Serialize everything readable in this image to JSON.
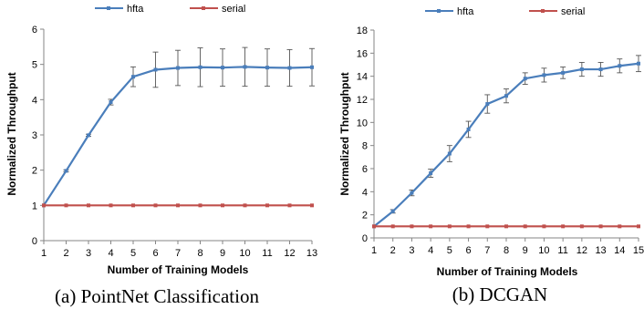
{
  "chart_data": [
    {
      "type": "line",
      "caption": "(a) PointNet Classification",
      "xlabel": "Number of Training Models",
      "ylabel": "Normalized Throughput",
      "xlim": [
        1,
        13
      ],
      "ylim": [
        0,
        6
      ],
      "x_ticks": [
        1,
        2,
        3,
        4,
        5,
        6,
        7,
        8,
        9,
        10,
        11,
        12,
        13
      ],
      "y_ticks": [
        0,
        1,
        2,
        3,
        4,
        5,
        6
      ],
      "legend_position": "top",
      "grid": false,
      "x": [
        1,
        2,
        3,
        4,
        5,
        6,
        7,
        8,
        9,
        10,
        11,
        12,
        13
      ],
      "series": [
        {
          "name": "hfta",
          "color": "#4a7ebb",
          "values": [
            1.0,
            1.98,
            2.99,
            3.93,
            4.65,
            4.85,
            4.9,
            4.92,
            4.91,
            4.93,
            4.91,
            4.9,
            4.92
          ],
          "error": [
            0.0,
            0.03,
            0.03,
            0.08,
            0.28,
            0.5,
            0.5,
            0.55,
            0.53,
            0.55,
            0.53,
            0.52,
            0.53
          ]
        },
        {
          "name": "serial",
          "color": "#c0504d",
          "values": [
            1,
            1,
            1,
            1,
            1,
            1,
            1,
            1,
            1,
            1,
            1,
            1,
            1
          ]
        }
      ]
    },
    {
      "type": "line",
      "caption": "(b) DCGAN",
      "xlabel": "Number of Training Models",
      "ylabel": "Normalized Throughput",
      "xlim": [
        1,
        15
      ],
      "ylim": [
        0,
        18
      ],
      "x_ticks": [
        1,
        2,
        3,
        4,
        5,
        6,
        7,
        8,
        9,
        10,
        11,
        12,
        13,
        14,
        15
      ],
      "y_ticks": [
        0,
        2,
        4,
        6,
        8,
        10,
        12,
        14,
        16,
        18
      ],
      "legend_position": "top",
      "grid": false,
      "x": [
        1,
        2,
        3,
        4,
        5,
        6,
        7,
        8,
        9,
        10,
        11,
        12,
        13,
        14,
        15
      ],
      "series": [
        {
          "name": "hfta",
          "color": "#4a7ebb",
          "values": [
            1.0,
            2.3,
            3.9,
            5.6,
            7.3,
            9.4,
            11.6,
            12.3,
            13.8,
            14.1,
            14.3,
            14.6,
            14.6,
            14.9,
            15.1
          ],
          "error": [
            0.0,
            0.15,
            0.25,
            0.35,
            0.7,
            0.7,
            0.8,
            0.6,
            0.5,
            0.6,
            0.5,
            0.6,
            0.6,
            0.6,
            0.7
          ]
        },
        {
          "name": "serial",
          "color": "#c0504d",
          "values": [
            1,
            1,
            1,
            1,
            1,
            1,
            1,
            1,
            1,
            1,
            1,
            1,
            1,
            1,
            1
          ]
        }
      ]
    }
  ]
}
